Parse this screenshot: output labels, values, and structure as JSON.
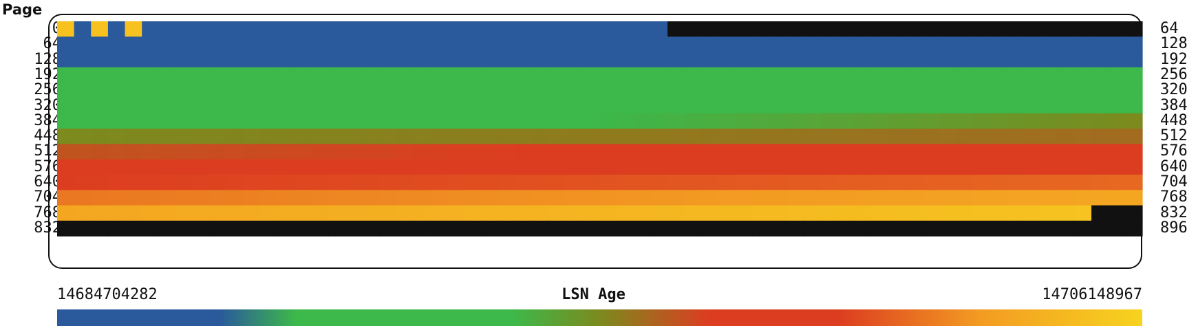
{
  "chart_data": {
    "type": "heatmap",
    "title": "",
    "ylabel": "Page",
    "y_ticks_left": [
      "0",
      "64",
      "128",
      "192",
      "256",
      "320",
      "384",
      "448",
      "512",
      "576",
      "640",
      "704",
      "768",
      "832"
    ],
    "y_ticks_right": [
      "64",
      "128",
      "192",
      "256",
      "320",
      "384",
      "448",
      "512",
      "576",
      "640",
      "704",
      "768",
      "832",
      "896"
    ],
    "pages_per_row": 64,
    "rows": 14,
    "page_count": 832,
    "colorbar": {
      "label": "LSN Age",
      "min": "14684704282",
      "max": "14706148967",
      "stops": [
        {
          "t": 0.0,
          "color": "#2a5a9c"
        },
        {
          "t": 0.15,
          "color": "#2a5a9c"
        },
        {
          "t": 0.22,
          "color": "#3db84a"
        },
        {
          "t": 0.42,
          "color": "#3db84a"
        },
        {
          "t": 0.5,
          "color": "#7c8a1e"
        },
        {
          "t": 0.6,
          "color": "#dc3d20"
        },
        {
          "t": 0.72,
          "color": "#dc3d20"
        },
        {
          "t": 0.85,
          "color": "#f39b22"
        },
        {
          "t": 1.0,
          "color": "#f7d31f"
        }
      ]
    },
    "row_values": [
      [
        0.0,
        0.0
      ],
      [
        0.0,
        0.0
      ],
      [
        0.06,
        0.08
      ],
      [
        0.38,
        0.42
      ],
      [
        0.32,
        0.32
      ],
      [
        0.34,
        0.34
      ],
      [
        0.34,
        0.5
      ],
      [
        0.5,
        0.54
      ],
      [
        0.57,
        0.64
      ],
      [
        0.66,
        0.68
      ],
      [
        0.72,
        0.78
      ],
      [
        0.8,
        0.88
      ],
      [
        0.88,
        0.96
      ],
      [
        1.0,
        1.0
      ]
    ],
    "highlight_pages": [
      0,
      2,
      4
    ],
    "highlight_color": "#f7c21f",
    "unused_color": "#111111",
    "unused_ranges": [
      [
        36,
        63
      ],
      [
        829,
        895
      ]
    ]
  }
}
